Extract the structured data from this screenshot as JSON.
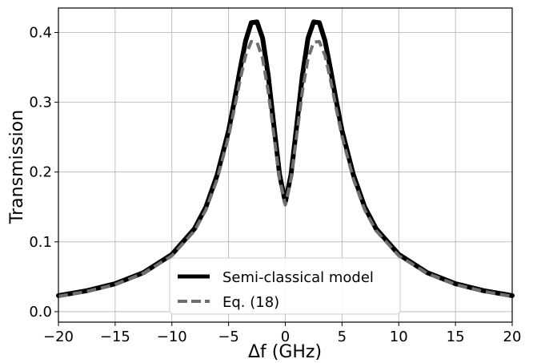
{
  "chart_data": {
    "type": "line",
    "xlabel": "Δf (GHz)",
    "ylabel": "Transmission",
    "xlim": [
      -20,
      20
    ],
    "ylim": [
      -0.015,
      0.435
    ],
    "xticks": [
      -20,
      -15,
      -10,
      -5,
      0,
      5,
      10,
      15,
      20
    ],
    "xtick_labels": [
      "−20",
      "−15",
      "−10",
      "−5",
      "0",
      "5",
      "10",
      "15",
      "20"
    ],
    "yticks": [
      0.0,
      0.1,
      0.2,
      0.3,
      0.4
    ],
    "ytick_labels": [
      "0.0",
      "0.1",
      "0.2",
      "0.3",
      "0.4"
    ],
    "grid": true,
    "legend_position": "bottom-center",
    "series": [
      {
        "name": "Semi-classical model",
        "style": "solid",
        "color": "#000000",
        "x": [
          -20,
          -17.5,
          -15,
          -12.5,
          -10,
          -8,
          -7,
          -6,
          -5,
          -4.5,
          -4,
          -3.5,
          -3,
          -2.5,
          -2,
          -1.5,
          -1,
          -0.5,
          0,
          0.5,
          1,
          1.5,
          2,
          2.5,
          3,
          3.5,
          4,
          4.5,
          5,
          6,
          7,
          8,
          10,
          12.5,
          15,
          17.5,
          20
        ],
        "y": [
          0.023,
          0.03,
          0.04,
          0.056,
          0.082,
          0.119,
          0.15,
          0.196,
          0.259,
          0.301,
          0.346,
          0.388,
          0.414,
          0.415,
          0.392,
          0.338,
          0.266,
          0.196,
          0.157,
          0.196,
          0.266,
          0.338,
          0.392,
          0.415,
          0.414,
          0.388,
          0.346,
          0.301,
          0.259,
          0.196,
          0.15,
          0.119,
          0.082,
          0.056,
          0.04,
          0.03,
          0.023
        ]
      },
      {
        "name": "Eq. (18)",
        "style": "dashed",
        "color": "#6e6e6e",
        "x": [
          -20,
          -17.5,
          -15,
          -12.5,
          -10,
          -8,
          -7,
          -6,
          -5,
          -4.5,
          -4,
          -3.5,
          -3,
          -2.5,
          -2,
          -1.5,
          -1,
          -0.5,
          0,
          0.5,
          1,
          1.5,
          2,
          2.5,
          3,
          3.5,
          4,
          4.5,
          5,
          6,
          7,
          8,
          10,
          12.5,
          15,
          17.5,
          20
        ],
        "y": [
          0.022,
          0.029,
          0.039,
          0.055,
          0.08,
          0.116,
          0.146,
          0.19,
          0.251,
          0.29,
          0.331,
          0.367,
          0.387,
          0.386,
          0.363,
          0.315,
          0.252,
          0.19,
          0.153,
          0.19,
          0.252,
          0.315,
          0.363,
          0.386,
          0.387,
          0.367,
          0.331,
          0.29,
          0.251,
          0.19,
          0.146,
          0.116,
          0.08,
          0.055,
          0.039,
          0.029,
          0.022
        ]
      }
    ]
  }
}
